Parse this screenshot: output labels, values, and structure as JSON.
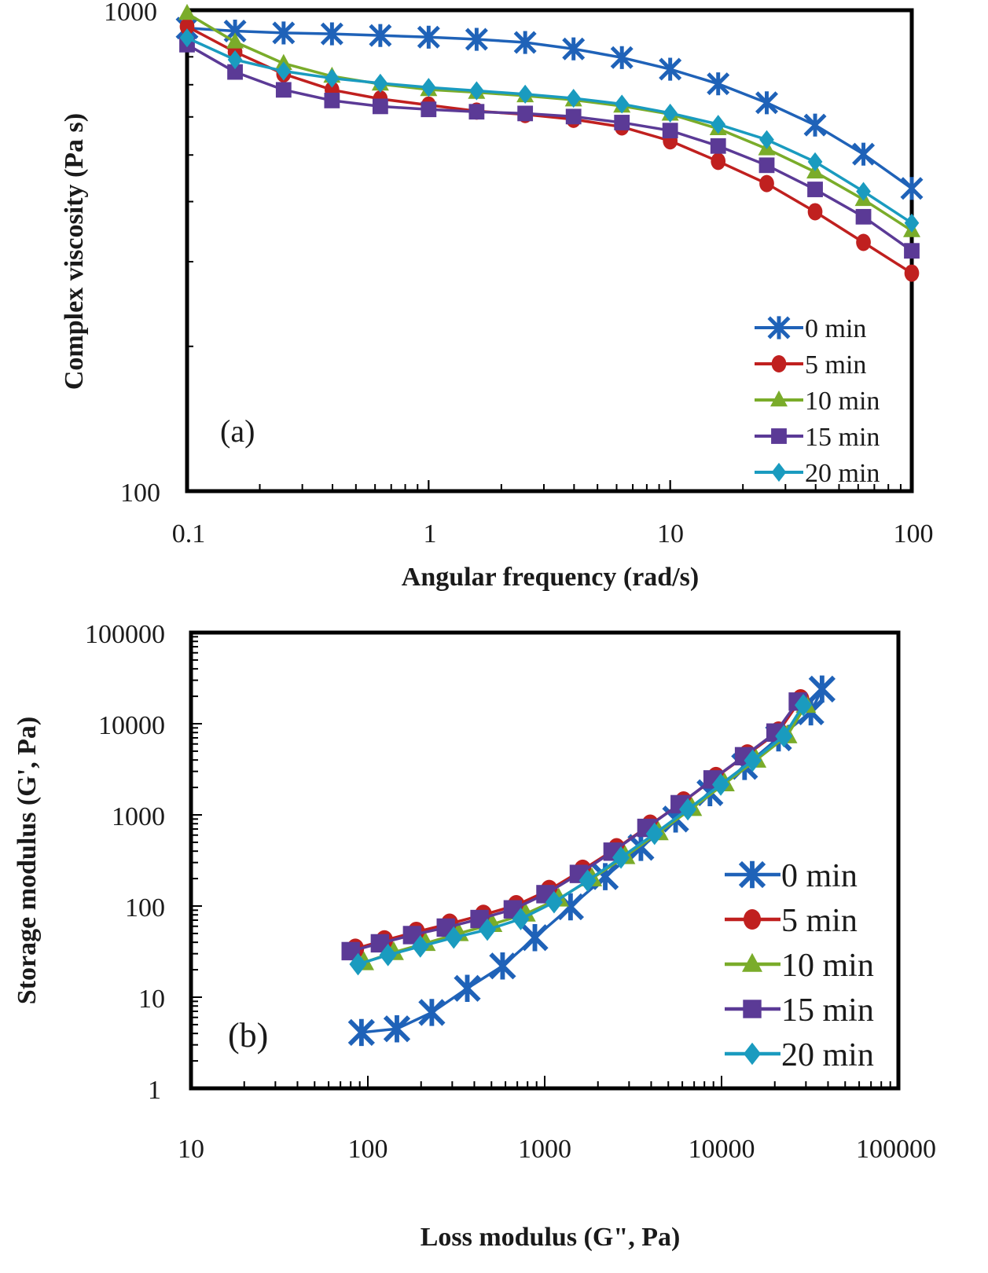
{
  "chart_data": [
    {
      "type": "line",
      "panel": "(a)",
      "title": "",
      "xlabel": "Angular frequency (rad/s)",
      "ylabel": "Complex viscosity (Pa s)",
      "xscale": "log",
      "yscale": "log",
      "xlim": [
        0.1,
        100
      ],
      "ylim": [
        100,
        1000
      ],
      "xticks": [
        "0.1",
        "1",
        "10",
        "100"
      ],
      "yticks": [
        "100",
        "1000"
      ],
      "grid": false,
      "legend_position": "bottom-right",
      "x": [
        0.1,
        0.158,
        0.251,
        0.398,
        0.631,
        1,
        1.58,
        2.51,
        3.98,
        6.31,
        10,
        15.8,
        25.1,
        39.8,
        63.1,
        100
      ],
      "series": [
        {
          "name": "0 min",
          "color": "#1f62b8",
          "marker": "x",
          "values": [
            918,
            905,
            897,
            893,
            886,
            879,
            870,
            857,
            831,
            797,
            754,
            703,
            642,
            577,
            502,
            426
          ]
        },
        {
          "name": "5 min",
          "color": "#c0201f",
          "marker": "circle",
          "values": [
            925,
            819,
            737,
            683,
            654,
            635,
            617,
            607,
            593,
            572,
            535,
            485,
            436,
            381,
            329,
            284
          ]
        },
        {
          "name": "10 min",
          "color": "#7aac2a",
          "marker": "triangle",
          "values": [
            985,
            859,
            775,
            729,
            702,
            684,
            675,
            664,
            651,
            632,
            608,
            567,
            515,
            461,
            404,
            348
          ]
        },
        {
          "name": "15 min",
          "color": "#5b3a96",
          "marker": "square",
          "values": [
            848,
            744,
            683,
            649,
            631,
            622,
            615,
            610,
            601,
            584,
            562,
            522,
            476,
            424,
            372,
            316
          ]
        },
        {
          "name": "20 min",
          "color": "#1a9bbf",
          "marker": "diamond",
          "values": [
            876,
            789,
            747,
            722,
            705,
            691,
            680,
            669,
            656,
            638,
            611,
            579,
            538,
            484,
            420,
            361
          ]
        }
      ]
    },
    {
      "type": "scatter",
      "panel": "(b)",
      "title": "",
      "xlabel": "Loss modulus (G\", Pa)",
      "ylabel": "Storage modulus (G', Pa)",
      "xscale": "log",
      "yscale": "log",
      "xlim": [
        10,
        100000
      ],
      "ylim": [
        1,
        100000
      ],
      "xticks": [
        "10",
        "100",
        "1000",
        "10000",
        "100000"
      ],
      "yticks": [
        "1",
        "10",
        "100",
        "1000",
        "10000",
        "100000"
      ],
      "grid": false,
      "legend_position": "bottom-right",
      "series": [
        {
          "name": "0 min",
          "color": "#1f62b8",
          "marker": "x",
          "x": [
            92,
            146,
            230,
            365,
            578,
            880,
            1400,
            2200,
            3500,
            5500,
            8600,
            13500,
            21000,
            32000,
            37000
          ],
          "y": [
            4.1,
            4.5,
            6.8,
            12.5,
            22,
            45,
            98,
            210,
            440,
            900,
            1750,
            3400,
            7000,
            13500,
            24000
          ]
        },
        {
          "name": "5 min",
          "color": "#c0201f",
          "marker": "circle",
          "x": [
            85,
            124,
            188,
            290,
            450,
            690,
            1060,
            1640,
            2550,
            3950,
            6100,
            9300,
            14000,
            21000,
            28000
          ],
          "y": [
            34,
            42,
            52,
            64,
            80,
            102,
            150,
            250,
            430,
            780,
            1400,
            2600,
            4600,
            8200,
            18500
          ]
        },
        {
          "name": "10 min",
          "color": "#7aac2a",
          "marker": "triangle",
          "x": [
            95,
            140,
            212,
            326,
            505,
            780,
            1200,
            1850,
            2850,
            4400,
            6800,
            10400,
            15700,
            23500,
            30000
          ],
          "y": [
            24,
            31,
            39,
            50,
            63,
            82,
            120,
            200,
            350,
            640,
            1180,
            2200,
            4000,
            7400,
            16000
          ]
        },
        {
          "name": "15 min",
          "color": "#5b3a96",
          "marker": "square",
          "x": [
            80,
            117,
            178,
            276,
            428,
            660,
            1010,
            1560,
            2420,
            3760,
            5800,
            8900,
            13400,
            20200,
            27000
          ],
          "y": [
            32,
            39,
            48,
            58,
            72,
            92,
            135,
            225,
            395,
            720,
            1310,
            2450,
            4400,
            8000,
            17500
          ]
        },
        {
          "name": "20 min",
          "color": "#1a9bbf",
          "marker": "diamond",
          "x": [
            88,
            130,
            198,
            306,
            474,
            732,
            1130,
            1750,
            2700,
            4180,
            6450,
            9900,
            15000,
            22500,
            29000
          ],
          "y": [
            23,
            29,
            36,
            45,
            55,
            72,
            110,
            190,
            340,
            620,
            1150,
            2150,
            3950,
            7300,
            16000
          ]
        }
      ]
    }
  ]
}
